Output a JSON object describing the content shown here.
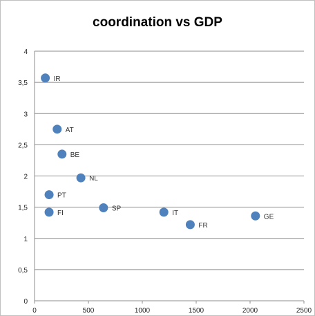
{
  "chart_data": {
    "type": "scatter",
    "title": "coordination vs GDP",
    "xlabel": "",
    "ylabel": "",
    "xlim": [
      0,
      2500
    ],
    "ylim": [
      0,
      4
    ],
    "xticks": [
      "0",
      "500",
      "1000",
      "1500",
      "2000",
      "2500"
    ],
    "yticks": [
      "0",
      "0,5",
      "1",
      "1,5",
      "2",
      "2,5",
      "3",
      "3,5",
      "4"
    ],
    "grid": "horizontal",
    "legend": "none",
    "marker_color": "#4f81bd",
    "points": [
      {
        "label": "IR",
        "x": 100,
        "y": 3.57
      },
      {
        "label": "AT",
        "x": 210,
        "y": 2.75
      },
      {
        "label": "BE",
        "x": 255,
        "y": 2.35
      },
      {
        "label": "NL",
        "x": 430,
        "y": 1.97
      },
      {
        "label": "PT",
        "x": 135,
        "y": 1.7
      },
      {
        "label": "FI",
        "x": 135,
        "y": 1.42
      },
      {
        "label": "SP",
        "x": 640,
        "y": 1.49
      },
      {
        "label": "IT",
        "x": 1200,
        "y": 1.42
      },
      {
        "label": "FR",
        "x": 1445,
        "y": 1.22
      },
      {
        "label": "GE",
        "x": 2050,
        "y": 1.36
      }
    ]
  }
}
